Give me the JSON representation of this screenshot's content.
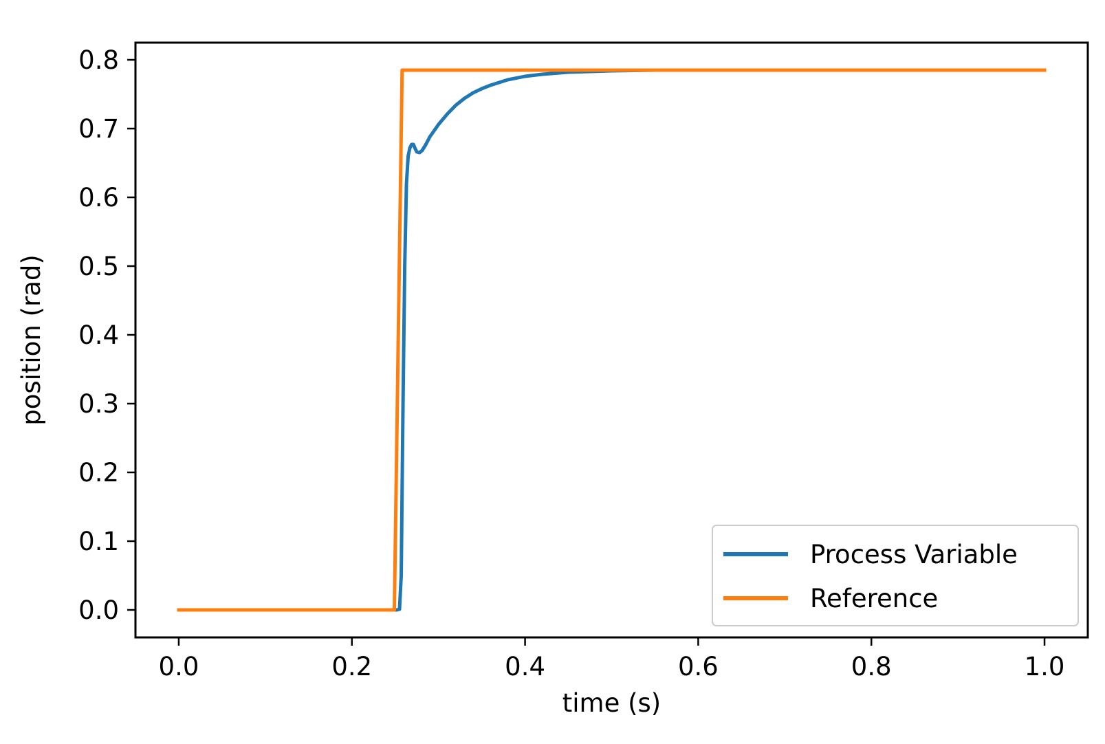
{
  "chart_data": {
    "type": "line",
    "title": "",
    "xlabel": "time (s)",
    "ylabel": "position (rad)",
    "xlim": [
      -0.05,
      1.05
    ],
    "ylim": [
      -0.04,
      0.825
    ],
    "x_ticks": [
      0.0,
      0.2,
      0.4,
      0.6,
      0.8,
      1.0
    ],
    "x_tick_labels": [
      "0.0",
      "0.2",
      "0.4",
      "0.6",
      "0.8",
      "1.0"
    ],
    "y_ticks": [
      0.0,
      0.1,
      0.2,
      0.3,
      0.4,
      0.5,
      0.6,
      0.7,
      0.8
    ],
    "y_tick_labels": [
      "0.0",
      "0.1",
      "0.2",
      "0.3",
      "0.4",
      "0.5",
      "0.6",
      "0.7",
      "0.8"
    ],
    "grid": false,
    "legend_position": "lower-right",
    "series": [
      {
        "name": "Process Variable",
        "color": "#1f77b4",
        "x": [
          0.0,
          0.252,
          0.255,
          0.257,
          0.259,
          0.261,
          0.263,
          0.265,
          0.267,
          0.269,
          0.271,
          0.273,
          0.275,
          0.278,
          0.281,
          0.285,
          0.29,
          0.3,
          0.31,
          0.32,
          0.33,
          0.34,
          0.35,
          0.36,
          0.38,
          0.4,
          0.42,
          0.45,
          0.5,
          0.55,
          0.6,
          0.7,
          0.81
        ],
        "y": [
          0.0,
          0.0,
          0.001,
          0.05,
          0.3,
          0.5,
          0.62,
          0.66,
          0.672,
          0.677,
          0.677,
          0.671,
          0.666,
          0.665,
          0.668,
          0.676,
          0.688,
          0.706,
          0.721,
          0.734,
          0.744,
          0.752,
          0.758,
          0.763,
          0.771,
          0.776,
          0.779,
          0.782,
          0.784,
          0.785,
          0.785,
          0.785,
          0.785
        ]
      },
      {
        "name": "Reference",
        "color": "#ff7f0e",
        "x": [
          0.0,
          0.249,
          0.258,
          1.0
        ],
        "y": [
          0.0,
          0.0,
          0.785,
          0.785
        ]
      }
    ]
  }
}
